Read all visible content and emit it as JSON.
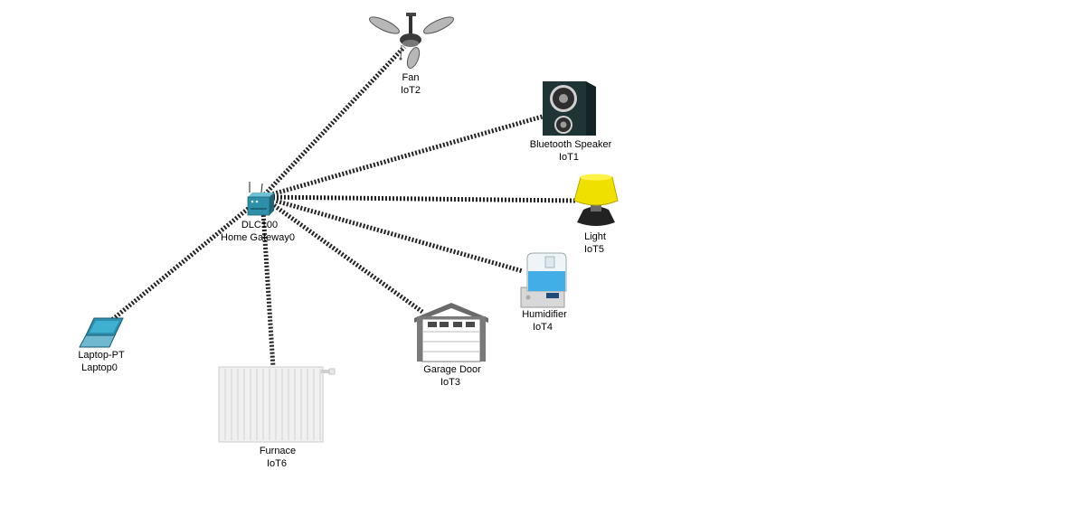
{
  "colors": {
    "link": "#222222",
    "gateway": "#2d8fa8",
    "laptop": "#2e90b0",
    "lamp_shade": "#f0e000",
    "speaker": "#1f3535",
    "garage_roof": "#6a6a6a",
    "humidifier_water": "#41aee8",
    "radiator": "#f0f0f0"
  },
  "devices": {
    "gateway": {
      "model": "DLC100",
      "name": "Home Gateway0",
      "icon": "home-gateway-icon"
    },
    "fan": {
      "model": "Fan",
      "name": "IoT2",
      "icon": "ceiling-fan-icon"
    },
    "speaker": {
      "model": "Bluetooth Speaker",
      "name": "IoT1",
      "icon": "speaker-icon"
    },
    "light": {
      "model": "Light",
      "name": "IoT5",
      "icon": "lamp-icon"
    },
    "humidifier": {
      "model": "Humidifier",
      "name": "IoT4",
      "icon": "humidifier-icon"
    },
    "garage": {
      "model": "Garage Door",
      "name": "IoT3",
      "icon": "garage-door-icon"
    },
    "furnace": {
      "model": "Furnace",
      "name": "IoT6",
      "icon": "radiator-icon"
    },
    "laptop": {
      "model": "Laptop-PT",
      "name": "Laptop0",
      "icon": "laptop-icon"
    }
  },
  "links": [
    {
      "from": "gateway",
      "to": "fan",
      "type": "wireless"
    },
    {
      "from": "gateway",
      "to": "speaker",
      "type": "wireless"
    },
    {
      "from": "gateway",
      "to": "light",
      "type": "wireless"
    },
    {
      "from": "gateway",
      "to": "humidifier",
      "type": "wireless"
    },
    {
      "from": "gateway",
      "to": "garage",
      "type": "wireless"
    },
    {
      "from": "gateway",
      "to": "furnace",
      "type": "wireless"
    },
    {
      "from": "gateway",
      "to": "laptop",
      "type": "wireless"
    }
  ]
}
